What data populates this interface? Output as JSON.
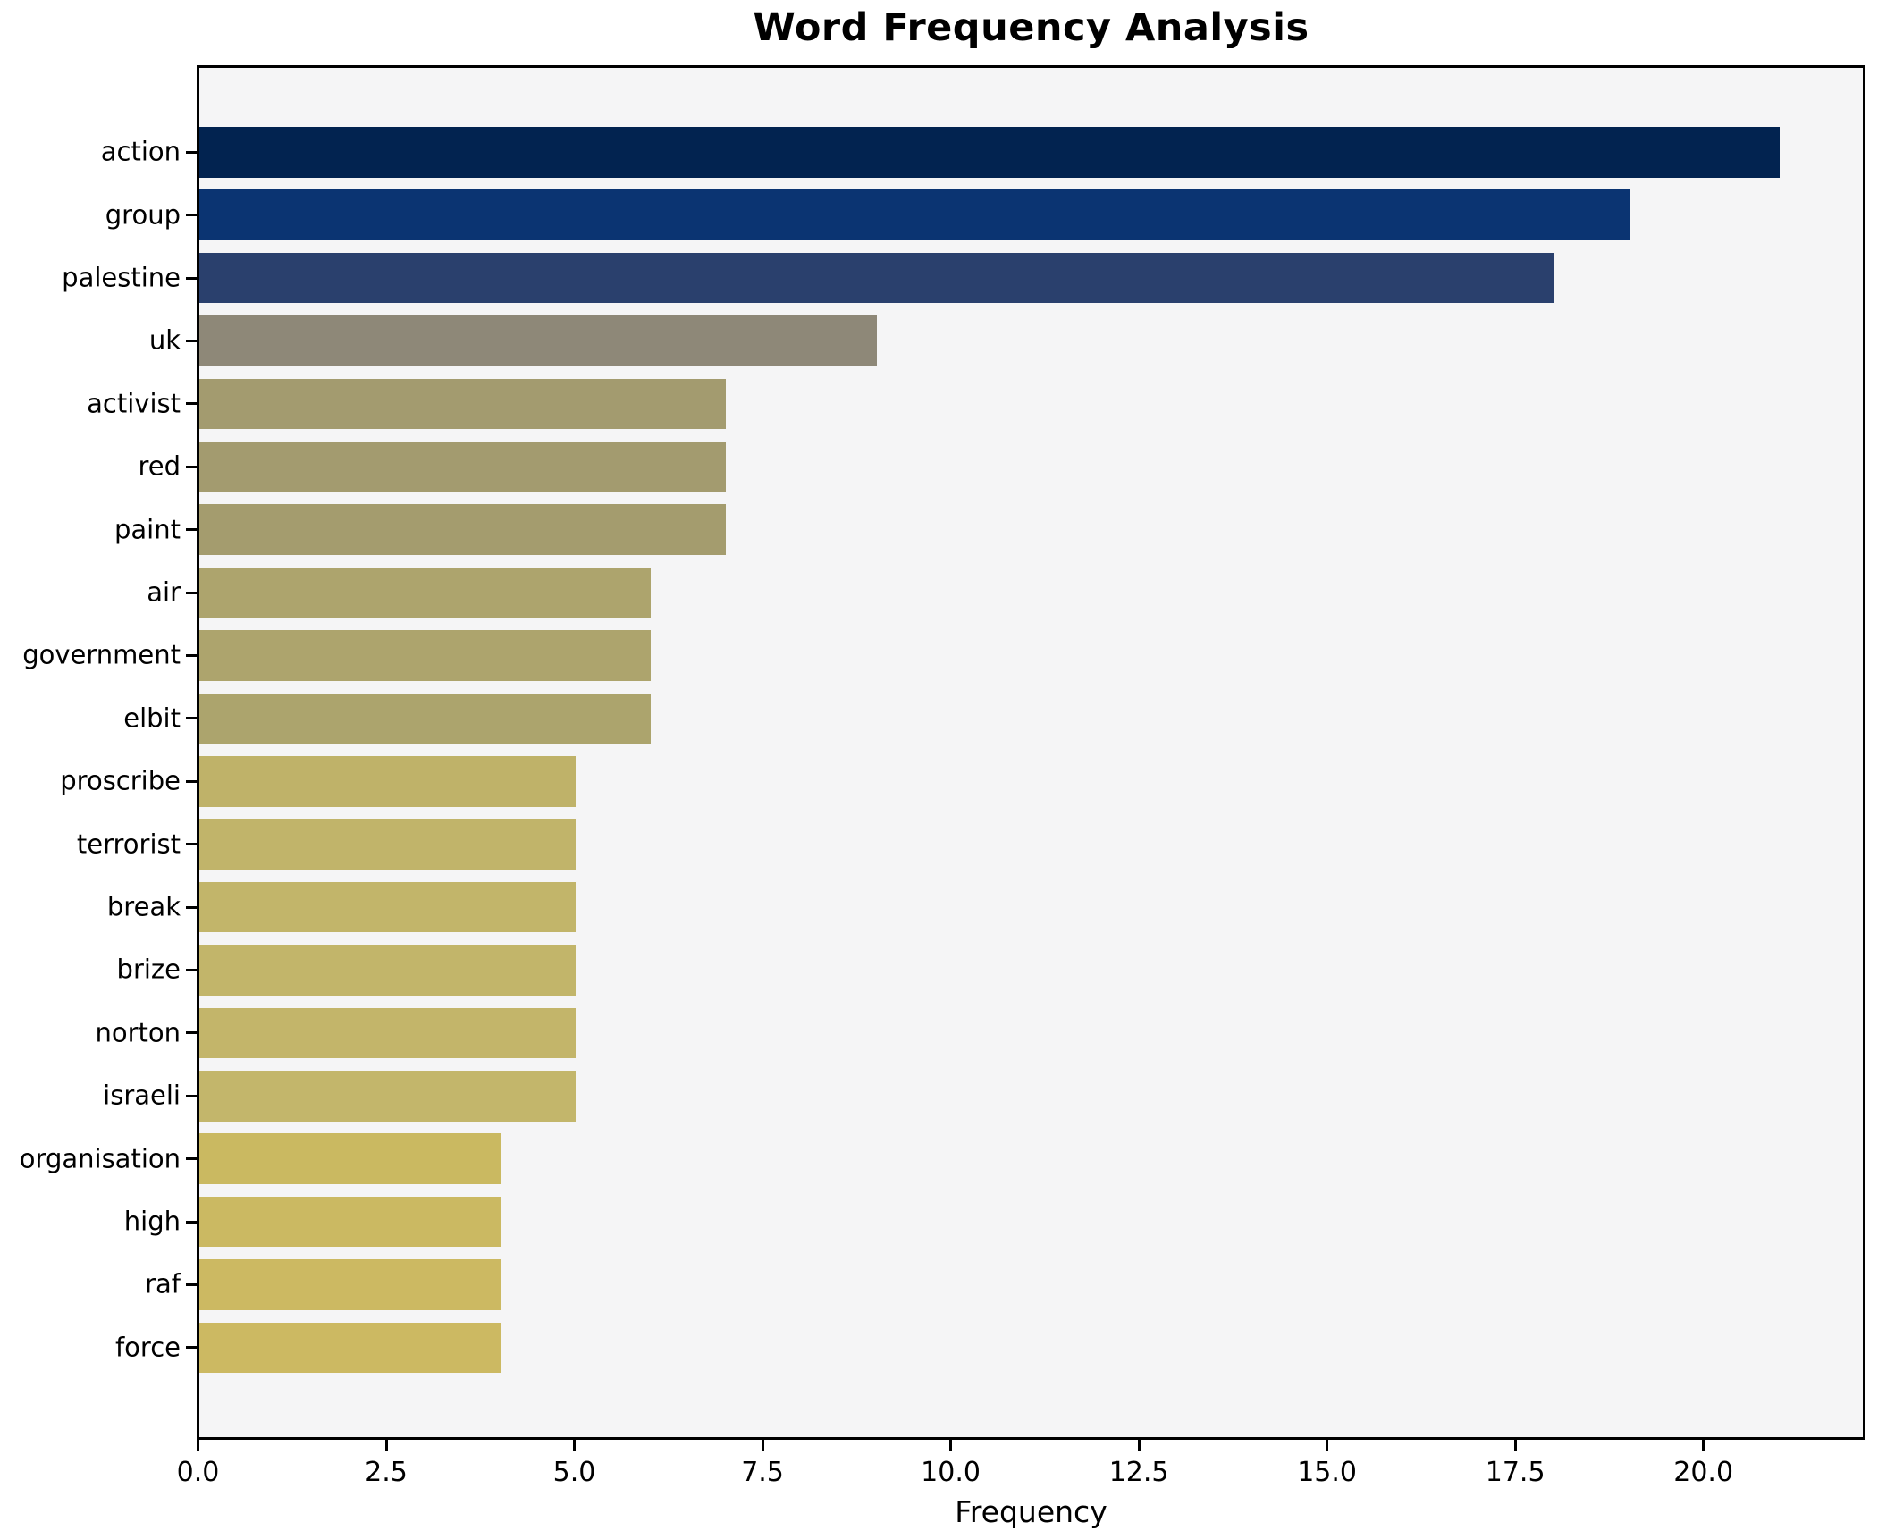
{
  "title": "Word Frequency Analysis",
  "chart_data": {
    "type": "bar",
    "orientation": "horizontal",
    "title": "Word Frequency Analysis",
    "xlabel": "Frequency",
    "ylabel": "",
    "categories": [
      "action",
      "group",
      "palestine",
      "uk",
      "activist",
      "red",
      "paint",
      "air",
      "government",
      "elbit",
      "proscribe",
      "terrorist",
      "break",
      "brize",
      "norton",
      "israeli",
      "organisation",
      "high",
      "raf",
      "force"
    ],
    "values": [
      21,
      19,
      18,
      9,
      7,
      7,
      7,
      6,
      6,
      6,
      5,
      5,
      5,
      5,
      5,
      5,
      4,
      4,
      4,
      4
    ],
    "bar_colors": [
      "#022350",
      "#0b3472",
      "#2a406d",
      "#8e8878",
      "#a39b6f",
      "#a39b6f",
      "#a49c6e",
      "#ada46d",
      "#ada46d",
      "#aca46d",
      "#bfb269",
      "#c1b46a",
      "#c2b56a",
      "#c2b56a",
      "#c3b56a",
      "#c3b66b",
      "#cab961",
      "#cbb962",
      "#ccb962",
      "#ccb962"
    ],
    "xlim": [
      0,
      22.1
    ],
    "xticks": [
      0,
      2.5,
      5,
      7.5,
      10,
      12.5,
      15,
      17.5,
      20
    ],
    "xtick_labels": [
      "0.0",
      "2.5",
      "5.0",
      "7.5",
      "10.0",
      "12.5",
      "15.0",
      "17.5",
      "20.0"
    ],
    "grid": false,
    "legend": null,
    "plot_background": "#f5f5f6",
    "figure_background": "#ffffff",
    "spine_color": "#000000"
  }
}
